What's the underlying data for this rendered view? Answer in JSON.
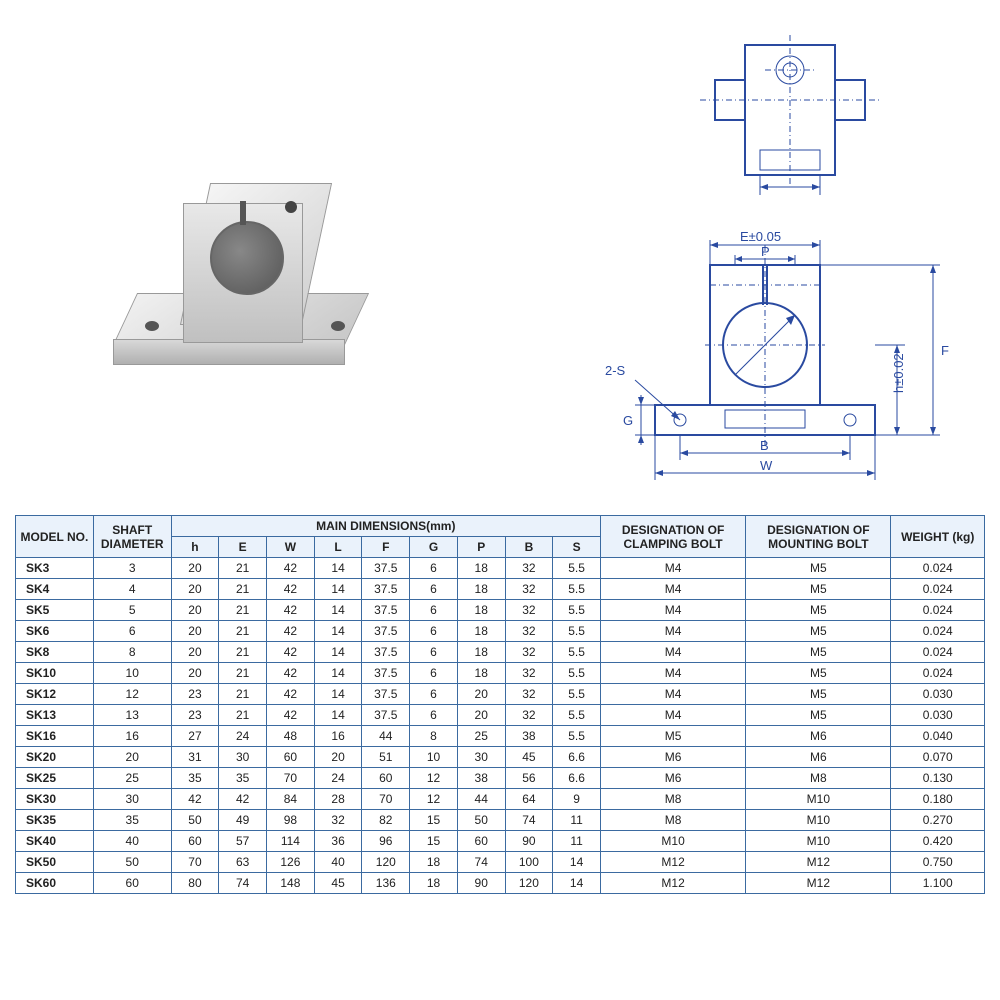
{
  "drawing_labels": {
    "E": "E±0.05",
    "P": "P",
    "h": "h±0.02",
    "F": "F",
    "G": "G",
    "B": "B",
    "W": "W",
    "S": "2-S"
  },
  "table": {
    "headers": {
      "model": "MODEL NO.",
      "shaft": "SHAFT DIAMETER",
      "main_dims": "MAIN DIMENSIONS(mm)",
      "clamping": "DESIGNATION OF CLAMPING BOLT",
      "mounting": "DESIGNATION OF MOUNTING BOLT",
      "weight": "WEIGHT (kg)"
    },
    "dim_cols": [
      "h",
      "E",
      "W",
      "L",
      "F",
      "G",
      "P",
      "B",
      "S"
    ],
    "rows": [
      {
        "model": "SK3",
        "shaft": "3",
        "h": "20",
        "E": "21",
        "W": "42",
        "L": "14",
        "F": "37.5",
        "G": "6",
        "P": "18",
        "B": "32",
        "S": "5.5",
        "clamp": "M4",
        "mount": "M5",
        "wt": "0.024"
      },
      {
        "model": "SK4",
        "shaft": "4",
        "h": "20",
        "E": "21",
        "W": "42",
        "L": "14",
        "F": "37.5",
        "G": "6",
        "P": "18",
        "B": "32",
        "S": "5.5",
        "clamp": "M4",
        "mount": "M5",
        "wt": "0.024"
      },
      {
        "model": "SK5",
        "shaft": "5",
        "h": "20",
        "E": "21",
        "W": "42",
        "L": "14",
        "F": "37.5",
        "G": "6",
        "P": "18",
        "B": "32",
        "S": "5.5",
        "clamp": "M4",
        "mount": "M5",
        "wt": "0.024"
      },
      {
        "model": "SK6",
        "shaft": "6",
        "h": "20",
        "E": "21",
        "W": "42",
        "L": "14",
        "F": "37.5",
        "G": "6",
        "P": "18",
        "B": "32",
        "S": "5.5",
        "clamp": "M4",
        "mount": "M5",
        "wt": "0.024"
      },
      {
        "model": "SK8",
        "shaft": "8",
        "h": "20",
        "E": "21",
        "W": "42",
        "L": "14",
        "F": "37.5",
        "G": "6",
        "P": "18",
        "B": "32",
        "S": "5.5",
        "clamp": "M4",
        "mount": "M5",
        "wt": "0.024"
      },
      {
        "model": "SK10",
        "shaft": "10",
        "h": "20",
        "E": "21",
        "W": "42",
        "L": "14",
        "F": "37.5",
        "G": "6",
        "P": "18",
        "B": "32",
        "S": "5.5",
        "clamp": "M4",
        "mount": "M5",
        "wt": "0.024"
      },
      {
        "model": "SK12",
        "shaft": "12",
        "h": "23",
        "E": "21",
        "W": "42",
        "L": "14",
        "F": "37.5",
        "G": "6",
        "P": "20",
        "B": "32",
        "S": "5.5",
        "clamp": "M4",
        "mount": "M5",
        "wt": "0.030"
      },
      {
        "model": "SK13",
        "shaft": "13",
        "h": "23",
        "E": "21",
        "W": "42",
        "L": "14",
        "F": "37.5",
        "G": "6",
        "P": "20",
        "B": "32",
        "S": "5.5",
        "clamp": "M4",
        "mount": "M5",
        "wt": "0.030"
      },
      {
        "model": "SK16",
        "shaft": "16",
        "h": "27",
        "E": "24",
        "W": "48",
        "L": "16",
        "F": "44",
        "G": "8",
        "P": "25",
        "B": "38",
        "S": "5.5",
        "clamp": "M5",
        "mount": "M6",
        "wt": "0.040"
      },
      {
        "model": "SK20",
        "shaft": "20",
        "h": "31",
        "E": "30",
        "W": "60",
        "L": "20",
        "F": "51",
        "G": "10",
        "P": "30",
        "B": "45",
        "S": "6.6",
        "clamp": "M6",
        "mount": "M6",
        "wt": "0.070"
      },
      {
        "model": "SK25",
        "shaft": "25",
        "h": "35",
        "E": "35",
        "W": "70",
        "L": "24",
        "F": "60",
        "G": "12",
        "P": "38",
        "B": "56",
        "S": "6.6",
        "clamp": "M6",
        "mount": "M8",
        "wt": "0.130"
      },
      {
        "model": "SK30",
        "shaft": "30",
        "h": "42",
        "E": "42",
        "W": "84",
        "L": "28",
        "F": "70",
        "G": "12",
        "P": "44",
        "B": "64",
        "S": "9",
        "clamp": "M8",
        "mount": "M10",
        "wt": "0.180"
      },
      {
        "model": "SK35",
        "shaft": "35",
        "h": "50",
        "E": "49",
        "W": "98",
        "L": "32",
        "F": "82",
        "G": "15",
        "P": "50",
        "B": "74",
        "S": "11",
        "clamp": "M8",
        "mount": "M10",
        "wt": "0.270"
      },
      {
        "model": "SK40",
        "shaft": "40",
        "h": "60",
        "E": "57",
        "W": "114",
        "L": "36",
        "F": "96",
        "G": "15",
        "P": "60",
        "B": "90",
        "S": "11",
        "clamp": "M10",
        "mount": "M10",
        "wt": "0.420"
      },
      {
        "model": "SK50",
        "shaft": "50",
        "h": "70",
        "E": "63",
        "W": "126",
        "L": "40",
        "F": "120",
        "G": "18",
        "P": "74",
        "B": "100",
        "S": "14",
        "clamp": "M12",
        "mount": "M12",
        "wt": "0.750"
      },
      {
        "model": "SK60",
        "shaft": "60",
        "h": "80",
        "E": "74",
        "W": "148",
        "L": "45",
        "F": "136",
        "G": "18",
        "P": "90",
        "B": "120",
        "S": "14",
        "clamp": "M12",
        "mount": "M12",
        "wt": "1.100"
      }
    ]
  },
  "colors": {
    "line": "#2a4aa0",
    "border": "#3b6aa0",
    "header_bg": "#eaf2fb"
  }
}
